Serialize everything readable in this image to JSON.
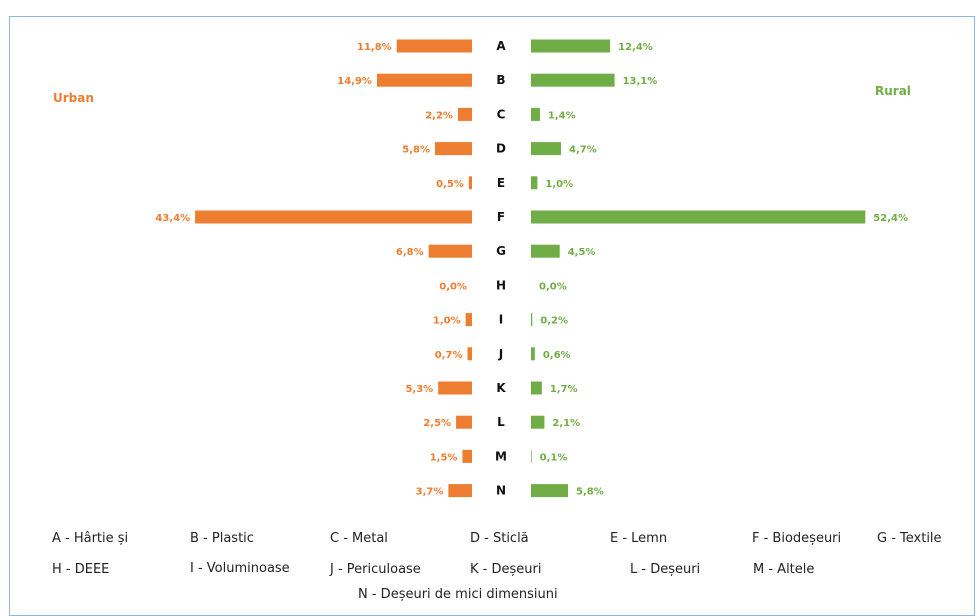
{
  "labels": {
    "urban": "Urban",
    "rural": "Rural"
  },
  "colors": {
    "urban": "#ed7d31",
    "rural": "#70ad47",
    "border": "#8eb4e3"
  },
  "chart_data": {
    "type": "bar",
    "orientation": "horizontal",
    "layout": "butterfly",
    "categories": [
      "A",
      "B",
      "C",
      "D",
      "E",
      "F",
      "G",
      "H",
      "I",
      "J",
      "K",
      "L",
      "M",
      "N"
    ],
    "series": [
      {
        "name": "Urban",
        "values": [
          11.8,
          14.9,
          2.2,
          5.8,
          0.5,
          43.4,
          6.8,
          0.0,
          1.0,
          0.7,
          5.3,
          2.5,
          1.5,
          3.7
        ],
        "labels": [
          "11,8%",
          "14,9%",
          "2,2%",
          "5,8%",
          "0,5%",
          "43,4%",
          "6,8%",
          "0,0%",
          "1,0%",
          "0,7%",
          "5,3%",
          "2,5%",
          "1,5%",
          "3,7%"
        ],
        "color": "#ed7d31"
      },
      {
        "name": "Rural",
        "values": [
          12.4,
          13.1,
          1.4,
          4.7,
          1.0,
          52.4,
          4.5,
          0.0,
          0.2,
          0.6,
          1.7,
          2.1,
          0.1,
          5.8
        ],
        "labels": [
          "12,4%",
          "13,1%",
          "1,4%",
          "4,7%",
          "1,0%",
          "52,4%",
          "4,5%",
          "0,0%",
          "0,2%",
          "0,6%",
          "1,7%",
          "2,1%",
          "0,1%",
          "5,8%"
        ],
        "color": "#70ad47"
      }
    ],
    "legend": [
      "A - Hârtie și",
      "B - Plastic",
      "C - Metal",
      "D - Sticlă",
      "E - Lemn",
      "F - Biodeșeuri",
      "G - Textile",
      "H - DEEE",
      "I - Voluminoase",
      "J - Periculoase",
      "K - Deșeuri",
      "L - Deșeuri",
      "M - Altele",
      "N - Deșeuri de mici dimensiuni"
    ],
    "grid": false
  }
}
